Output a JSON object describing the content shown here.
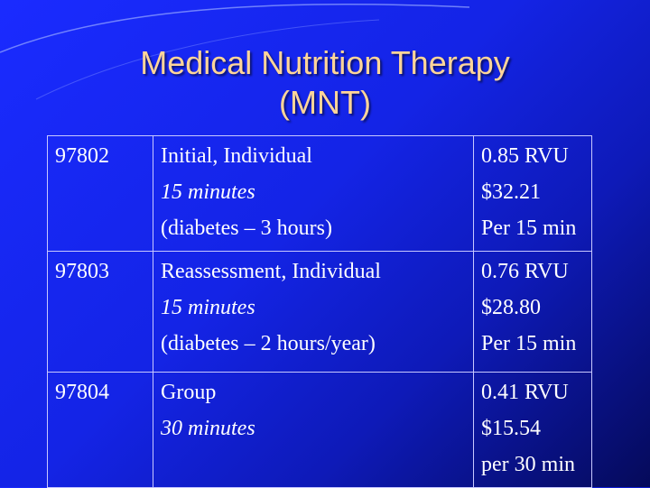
{
  "slide": {
    "title_line1": "Medical Nutrition Therapy",
    "title_line2": "(MNT)"
  },
  "rows": [
    {
      "code": "97802",
      "name": "Initial, Individual",
      "time": "15 minutes",
      "note": "(diabetes – 3 hours)",
      "rvu": "0.85 RVU",
      "price": "$32.21",
      "per": "Per 15 min"
    },
    {
      "code": "97803",
      "name": "Reassessment, Individual",
      "time": "15 minutes",
      "note": "(diabetes – 2 hours/year)",
      "rvu": "0.76 RVU",
      "price": "$28.80",
      "per": "Per 15 min"
    },
    {
      "code": "97804",
      "name": "Group",
      "time": "30 minutes",
      "note": "",
      "rvu": "0.41 RVU",
      "price": "$15.54",
      "per": "per 30 min"
    }
  ],
  "colors": {
    "background": "#1424e6",
    "title": "#ffd599",
    "text": "#ffffff"
  }
}
